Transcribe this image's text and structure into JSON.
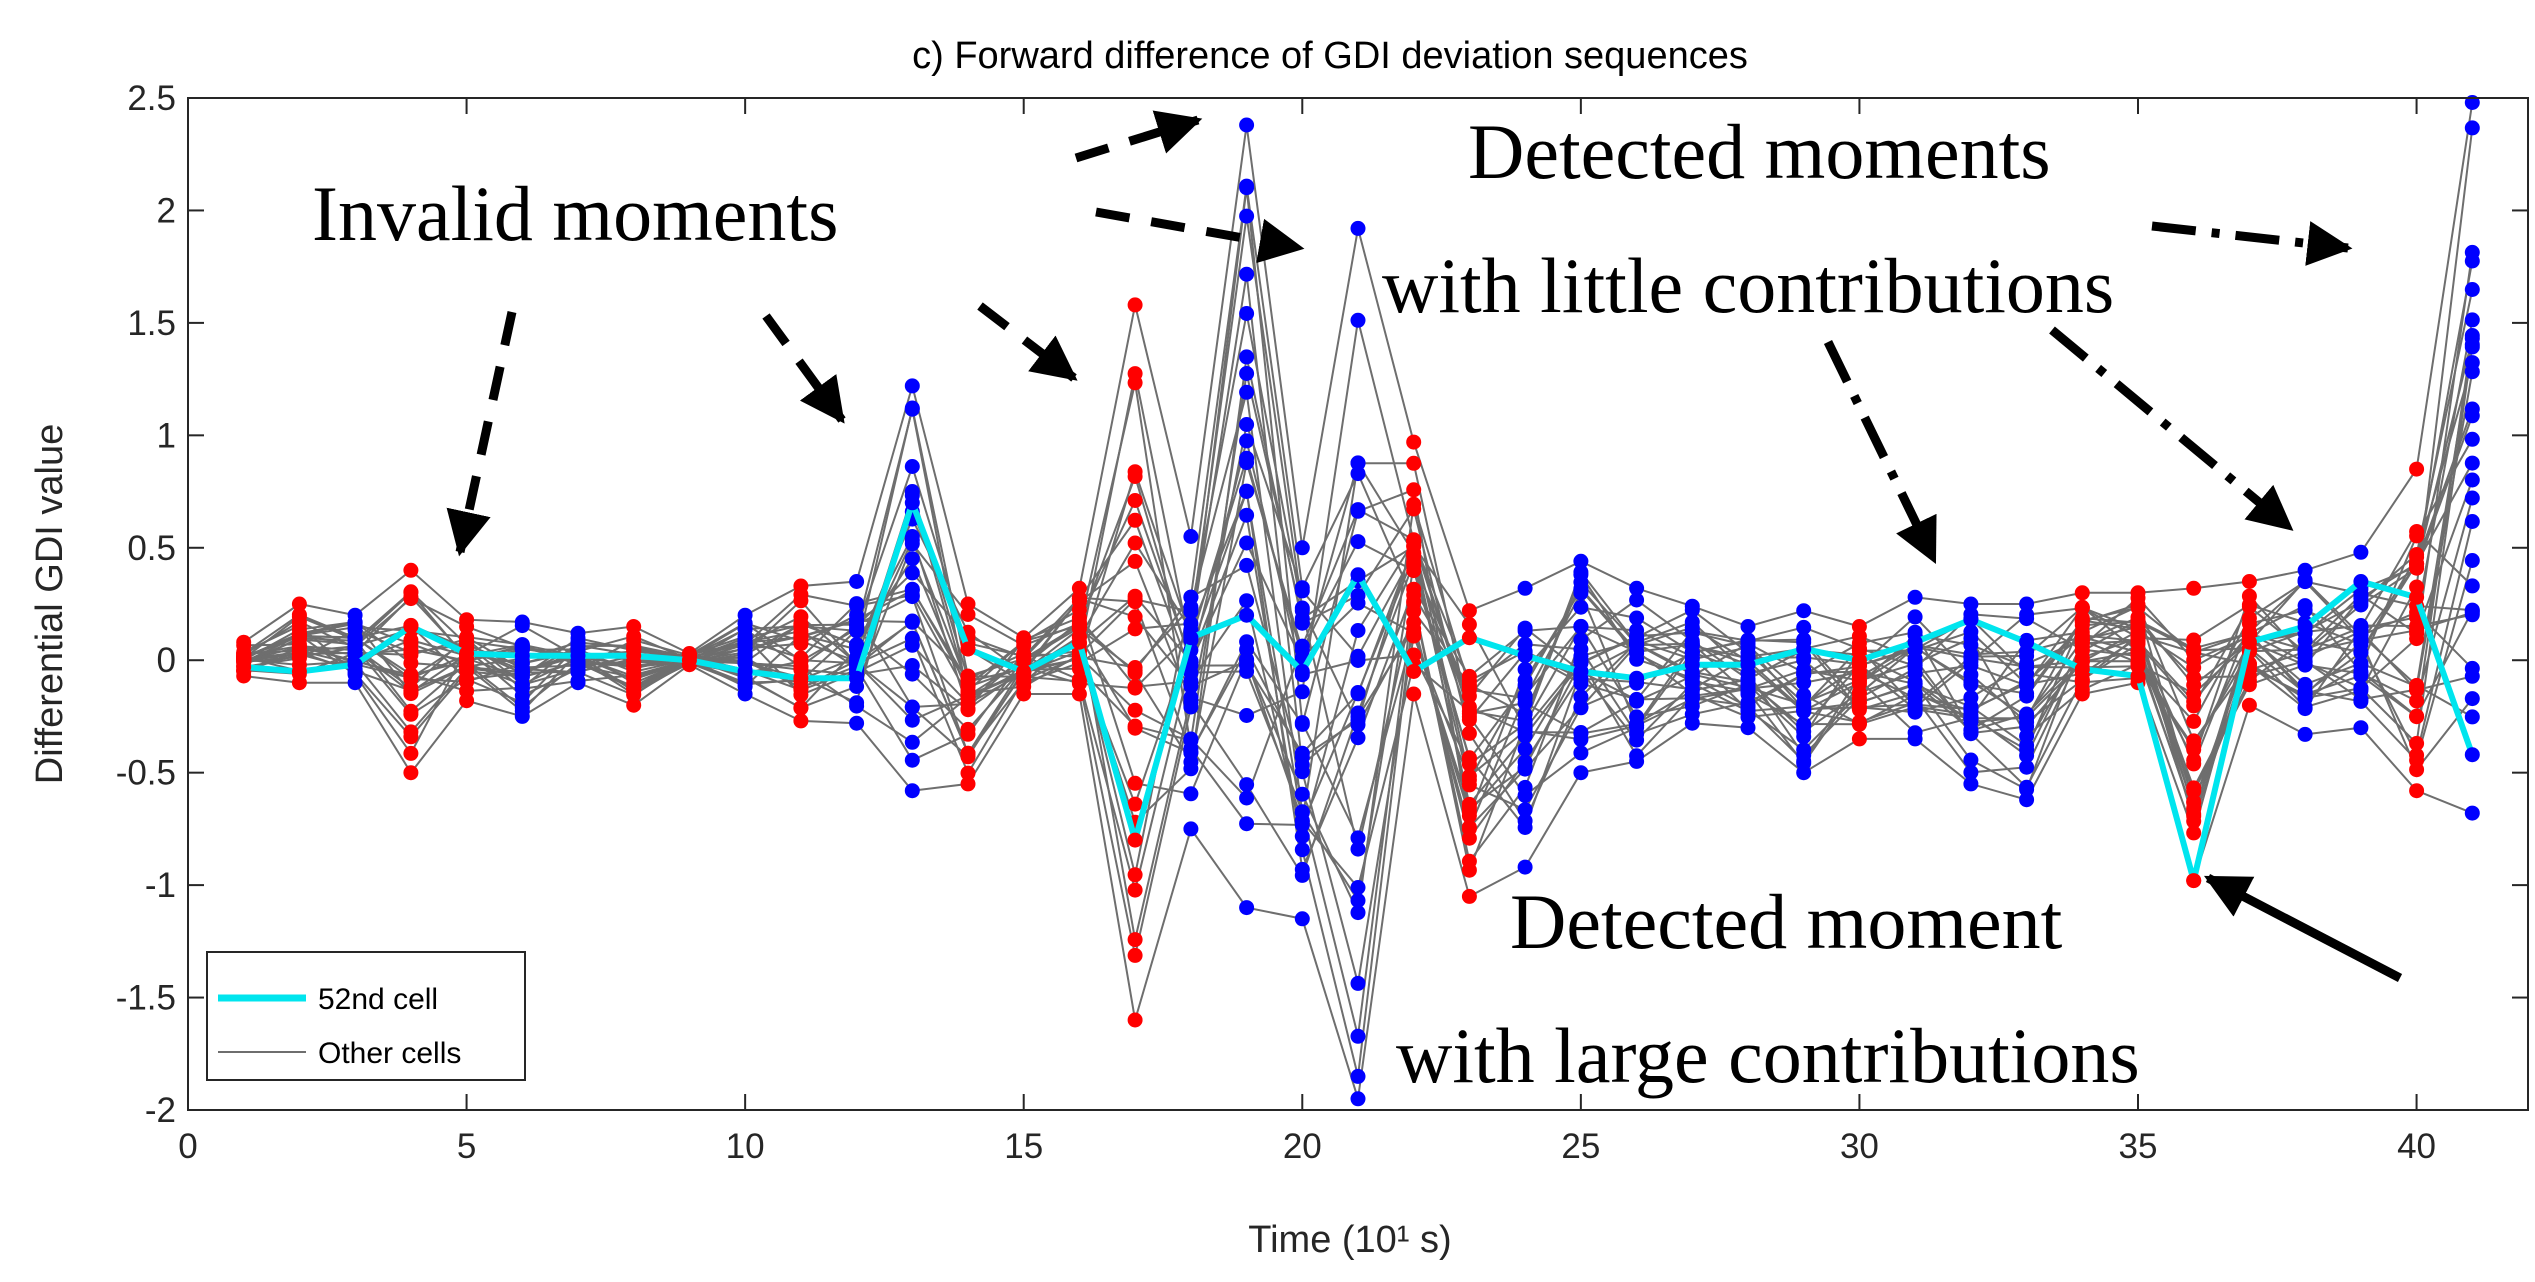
{
  "chart_data": {
    "type": "line",
    "title": "c) Forward difference of GDI deviation sequences",
    "xlabel": "Time (10¹ s)",
    "ylabel": "Differential GDI value",
    "xlim": [
      0,
      42
    ],
    "ylim": [
      -2,
      2.5
    ],
    "xticks": [
      0,
      5,
      10,
      15,
      20,
      25,
      30,
      35,
      40
    ],
    "xtick_labels": [
      "0",
      "5",
      "10",
      "15",
      "20",
      "25",
      "30",
      "35",
      "40"
    ],
    "yticks": [
      2.5,
      2,
      1.5,
      1,
      0.5,
      0,
      -0.5,
      -1,
      -1.5,
      -2
    ],
    "ytick_labels": [
      "2.5",
      "2",
      "1.5",
      "1",
      "0.5",
      "0",
      "-0.5",
      "-1",
      "-1.5",
      "-2"
    ],
    "colors": {
      "cell52": "#00e5ee",
      "others": "#6e6e6e",
      "blue_marker": "#0000ff",
      "red_marker": "#ff0000"
    },
    "series": [
      {
        "name": "52nd cell",
        "x": [
          1,
          2,
          3,
          4,
          5,
          6,
          7,
          8,
          9,
          10,
          11,
          12,
          13,
          14,
          15,
          16,
          17,
          18,
          19,
          20,
          21,
          22,
          23,
          24,
          25,
          26,
          27,
          28,
          29,
          30,
          31,
          32,
          33,
          34,
          35,
          36,
          37,
          38,
          39,
          40,
          41
        ],
        "values": [
          -0.03,
          -0.05,
          -0.02,
          0.15,
          0.03,
          0.02,
          0.02,
          0.02,
          0.0,
          -0.05,
          -0.08,
          -0.08,
          0.7,
          0.05,
          -0.05,
          0.08,
          -0.8,
          0.1,
          0.2,
          -0.05,
          0.38,
          -0.05,
          0.1,
          0.02,
          -0.05,
          -0.08,
          -0.02,
          -0.02,
          0.05,
          0.0,
          0.08,
          0.18,
          0.08,
          -0.04,
          -0.07,
          -0.98,
          0.08,
          0.15,
          0.35,
          0.28,
          -0.42
        ]
      },
      {
        "name": "Other cells",
        "lower": [
          -0.07,
          -0.1,
          -0.1,
          -0.5,
          -0.18,
          -0.25,
          -0.1,
          -0.2,
          -0.02,
          -0.15,
          -0.27,
          -0.28,
          -0.58,
          -0.55,
          -0.15,
          -0.15,
          -1.6,
          -0.75,
          -1.1,
          -1.15,
          -1.95,
          -0.15,
          -1.05,
          -0.92,
          -0.5,
          -0.45,
          -0.28,
          -0.3,
          -0.5,
          -0.35,
          -0.35,
          -0.55,
          -0.62,
          -0.15,
          -0.1,
          -0.98,
          -0.2,
          -0.33,
          -0.3,
          -0.58,
          -0.68
        ],
        "upper": [
          0.08,
          0.25,
          0.2,
          0.4,
          0.18,
          0.17,
          0.12,
          0.15,
          0.03,
          0.2,
          0.33,
          0.35,
          1.22,
          0.25,
          0.1,
          0.32,
          1.58,
          0.55,
          2.38,
          0.5,
          1.92,
          0.97,
          0.22,
          0.32,
          0.44,
          0.32,
          0.24,
          0.15,
          0.22,
          0.15,
          0.28,
          0.25,
          0.25,
          0.3,
          0.3,
          0.32,
          0.35,
          0.4,
          0.48,
          0.85,
          2.48
        ]
      }
    ],
    "marker_colors": [
      "red",
      "red",
      "blue",
      "red",
      "red",
      "blue",
      "blue",
      "red",
      "red",
      "blue",
      "red",
      "blue",
      "blue",
      "red",
      "red",
      "red",
      "red",
      "blue",
      "blue",
      "blue",
      "blue",
      "red",
      "red",
      "blue",
      "blue",
      "blue",
      "blue",
      "blue",
      "blue",
      "red",
      "blue",
      "blue",
      "blue",
      "red",
      "red",
      "red",
      "red",
      "blue",
      "blue",
      "red",
      "blue"
    ],
    "legend": {
      "position": "bottom-left",
      "entries": [
        "52nd cell",
        "Other cells"
      ]
    },
    "annotations": [
      "Invalid moments",
      "Detected moments",
      "with little contributions",
      "Detected moment",
      "with large contributions"
    ]
  }
}
